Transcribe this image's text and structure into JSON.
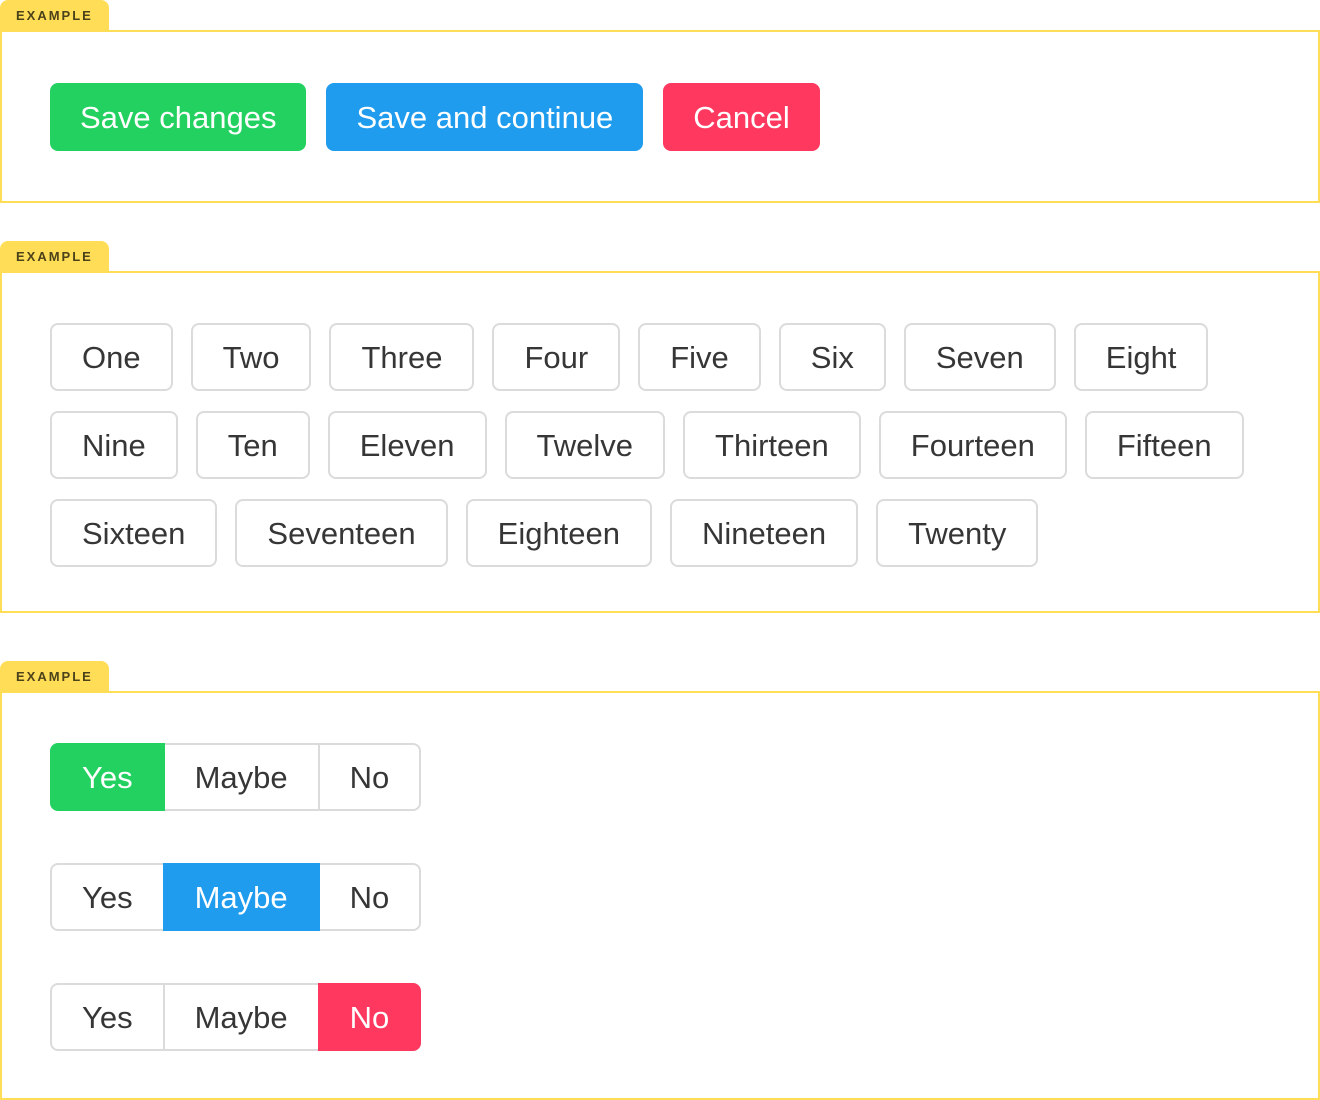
{
  "labels": {
    "example_tag": "EXAMPLE"
  },
  "colors": {
    "yellow": "#ffdd57",
    "tag_text": "#4c421a",
    "success": "#23d160",
    "info": "#209cee",
    "danger": "#ff3860",
    "border": "#dbdbdb",
    "text": "#363636",
    "white": "#ffffff"
  },
  "sections": {
    "grouped_buttons": {
      "buttons": [
        {
          "label": "Save changes",
          "color": "success"
        },
        {
          "label": "Save and continue",
          "color": "info"
        },
        {
          "label": "Cancel",
          "color": "danger"
        }
      ]
    },
    "button_list": {
      "buttons": [
        "One",
        "Two",
        "Three",
        "Four",
        "Five",
        "Six",
        "Seven",
        "Eight",
        "Nine",
        "Ten",
        "Eleven",
        "Twelve",
        "Thirteen",
        "Fourteen",
        "Fifteen",
        "Sixteen",
        "Seventeen",
        "Eighteen",
        "Nineteen",
        "Twenty"
      ]
    },
    "addon_groups": {
      "groups": [
        {
          "options": [
            "Yes",
            "Maybe",
            "No"
          ],
          "selected_index": 0,
          "selected_color": "success"
        },
        {
          "options": [
            "Yes",
            "Maybe",
            "No"
          ],
          "selected_index": 1,
          "selected_color": "info"
        },
        {
          "options": [
            "Yes",
            "Maybe",
            "No"
          ],
          "selected_index": 2,
          "selected_color": "danger"
        }
      ]
    }
  }
}
